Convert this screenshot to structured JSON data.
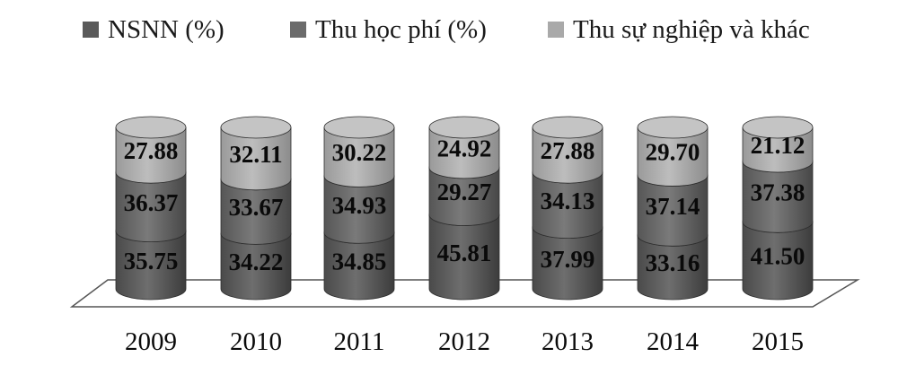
{
  "chart_data": {
    "type": "bar",
    "stacked": true,
    "style": "3d-cylinder",
    "categories": [
      "2009",
      "2010",
      "2011",
      "2012",
      "2013",
      "2014",
      "2015"
    ],
    "series": [
      {
        "name": "NSNN (%)",
        "values": [
          35.75,
          34.22,
          34.85,
          45.81,
          37.99,
          33.16,
          41.5
        ],
        "labels": [
          "35.75",
          "34.22",
          "34.85",
          "45.81",
          "37.99",
          "33.16",
          "41.50"
        ],
        "color": "#5a5a5a"
      },
      {
        "name": "Thu học phí (%)",
        "values": [
          36.37,
          33.67,
          34.93,
          29.27,
          34.13,
          37.14,
          37.38
        ],
        "labels": [
          "36.37",
          "33.67",
          "34.93",
          "29.27",
          "34.13",
          "37.14",
          "37.38"
        ],
        "color": "#6b6b6b"
      },
      {
        "name": "Thu sự nghiệp và khác",
        "values": [
          27.88,
          32.11,
          30.22,
          24.92,
          27.88,
          29.7,
          21.12
        ],
        "labels": [
          "27.88",
          "32.11",
          "30.22",
          "24.92",
          "27.88",
          "29.70",
          "21.12"
        ],
        "color": "#a9a9a9"
      }
    ],
    "ylim": [
      0,
      100
    ],
    "legend_position": "top",
    "grid": false
  }
}
